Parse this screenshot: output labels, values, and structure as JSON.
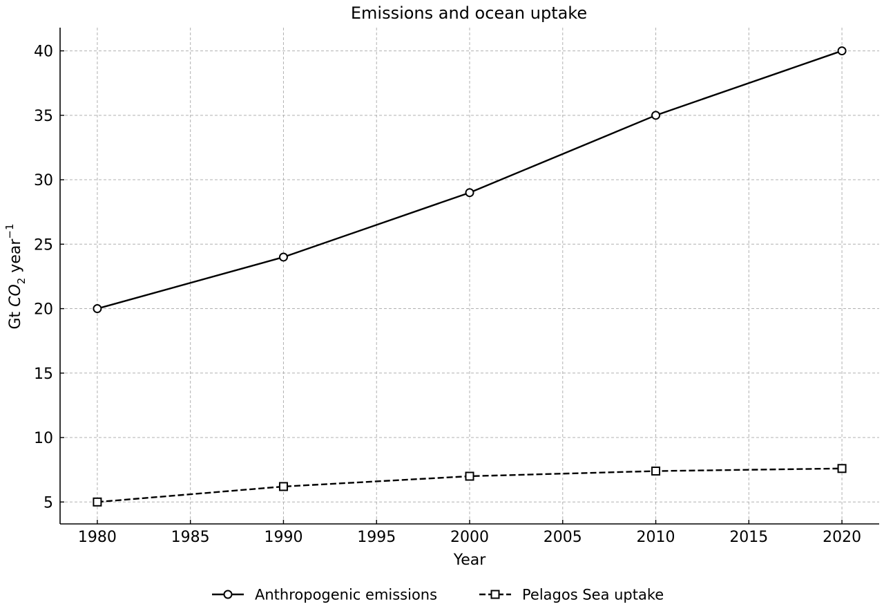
{
  "chart_data": {
    "type": "line",
    "title": "Emissions and ocean uptake",
    "xlabel": "Year",
    "ylabel": {
      "prefix": "Gt ",
      "chem": "CO",
      "chem_sub": "2",
      "unit": " year",
      "unit_sup": "−1"
    },
    "x": [
      1980,
      1990,
      2000,
      2010,
      2020
    ],
    "xlim": [
      1978,
      2022
    ],
    "ylim": [
      3.3,
      41.8
    ],
    "xticks": [
      "1980",
      "1985",
      "1990",
      "1995",
      "2000",
      "2005",
      "2010",
      "2015",
      "2020"
    ],
    "xtick_values": [
      1980,
      1985,
      1990,
      1995,
      2000,
      2005,
      2010,
      2015,
      2020
    ],
    "yticks": [
      "5",
      "10",
      "15",
      "20",
      "25",
      "30",
      "35",
      "40"
    ],
    "ytick_values": [
      5,
      10,
      15,
      20,
      25,
      30,
      35,
      40
    ],
    "grid": true,
    "legend_position": "bottom-center",
    "series": [
      {
        "name": "Anthropogenic emissions",
        "values": [
          20,
          24,
          29,
          35,
          40
        ],
        "marker": "circle",
        "linestyle": "solid",
        "color": "#000000"
      },
      {
        "name": "Pelagos Sea uptake",
        "values": [
          5.0,
          6.2,
          7.0,
          7.4,
          7.6
        ],
        "marker": "square",
        "linestyle": "dashed",
        "color": "#000000"
      }
    ]
  }
}
